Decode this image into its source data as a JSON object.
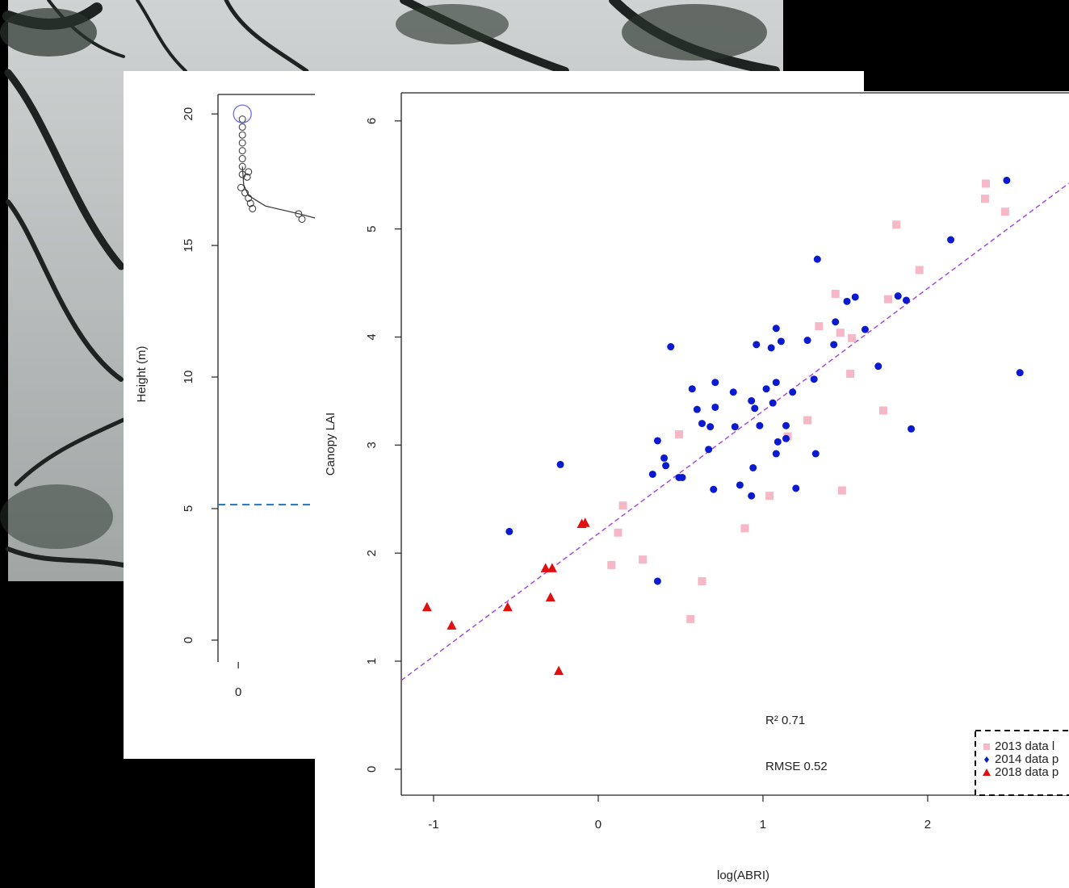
{
  "chart_data": [
    {
      "type": "scatter",
      "y_label": "Height (m)",
      "xlim": [
        -0.3,
        9
      ],
      "ylim": [
        -0.83,
        20.74
      ],
      "xticks": [
        0
      ],
      "yticks": [
        0,
        5,
        10,
        15,
        20
      ],
      "series": [
        {
          "color": "#333333",
          "x": [
            0.06,
            0.06,
            0.06,
            0.06,
            0.06,
            0.06,
            0.06,
            0.06,
            0.15,
            0.13,
            0.04,
            0.1,
            0.15,
            0.18,
            0.21,
            0.89,
            0.94
          ],
          "values": [
            19.8,
            19.5,
            19.2,
            18.9,
            18.6,
            18.3,
            18.0,
            17.7,
            17.8,
            17.6,
            17.2,
            17.0,
            16.8,
            16.6,
            16.4,
            16.2,
            16.0
          ]
        }
      ],
      "curve": {
        "color": "#333333",
        "x": [
          0.06,
          0.08,
          0.15,
          0.4,
          0.9,
          1.2
        ],
        "values": [
          18.0,
          17.3,
          16.9,
          16.5,
          16.2,
          16.0
        ]
      },
      "highlight": {
        "color": "#6f6fe6",
        "x": 0.06,
        "value": 20
      },
      "hline": {
        "color": "#1f77c4",
        "value": 5.15
      }
    },
    {
      "type": "scatter",
      "x_label": "log(ABRI)",
      "y_label": "Canopy LAI",
      "xlim": [
        -1.196,
        2.858
      ],
      "ylim": [
        -0.24,
        6.26
      ],
      "xticks": [
        -1,
        0,
        1,
        2
      ],
      "yticks": [
        0,
        1,
        2,
        3,
        4,
        5,
        6
      ],
      "legend": "bottom-right",
      "annotations": [
        "R² 0.71",
        "RMSE 0.52"
      ],
      "fit": {
        "color": "#a040e0",
        "slope": 1.135,
        "intercept": 2.18
      },
      "series": [
        {
          "name": "2013 data l",
          "color": "#f6b7c6",
          "marker": "square",
          "x": [
            2.353,
            2.348,
            2.47,
            1.81,
            1.95,
            1.44,
            1.76,
            1.34,
            1.47,
            1.54,
            1.53,
            1.73,
            1.27,
            1.15,
            0.49,
            0.15,
            0.12,
            0.08,
            0.27,
            0.63,
            0.89,
            1.04,
            1.48,
            0.56
          ],
          "values": [
            5.42,
            5.28,
            5.16,
            5.04,
            4.62,
            4.4,
            4.35,
            4.1,
            4.04,
            3.99,
            3.66,
            3.32,
            3.23,
            3.08,
            3.1,
            2.44,
            2.19,
            1.89,
            1.94,
            1.74,
            2.23,
            2.53,
            2.58,
            1.39
          ]
        },
        {
          "name": "2014 data p",
          "color": "#0a1ad0",
          "marker": "circle",
          "x": [
            2.48,
            2.14,
            1.33,
            1.56,
            1.51,
            1.82,
            1.87,
            1.62,
            1.44,
            1.43,
            1.08,
            0.96,
            0.44,
            1.27,
            1.11,
            1.05,
            1.7,
            2.56,
            0.82,
            0.71,
            0.57,
            1.02,
            1.08,
            1.31,
            1.18,
            1.06,
            0.93,
            0.95,
            0.6,
            0.71,
            1.14,
            0.98,
            0.83,
            0.63,
            0.68,
            1.09,
            1.14,
            0.36,
            0.67,
            1.9,
            -0.23,
            0.33,
            0.41,
            0.4,
            0.51,
            0.49,
            1.08,
            1.32,
            0.86,
            0.93,
            0.7,
            1.2,
            -0.54,
            0.36,
            0.94
          ],
          "values": [
            5.45,
            4.9,
            4.72,
            4.37,
            4.33,
            4.38,
            4.34,
            4.07,
            4.14,
            3.93,
            4.08,
            3.93,
            3.91,
            3.97,
            3.96,
            3.9,
            3.73,
            3.67,
            3.49,
            3.58,
            3.52,
            3.52,
            3.58,
            3.61,
            3.49,
            3.39,
            3.41,
            3.34,
            3.33,
            3.35,
            3.18,
            3.18,
            3.17,
            3.2,
            3.17,
            3.03,
            3.06,
            3.04,
            2.96,
            3.15,
            2.82,
            2.73,
            2.81,
            2.88,
            2.7,
            2.7,
            2.92,
            2.92,
            2.63,
            2.53,
            2.59,
            2.6,
            2.2,
            1.74,
            2.79
          ]
        },
        {
          "name": "2018 data p",
          "color": "#e01010",
          "marker": "triangle",
          "x": [
            -1.04,
            -0.89,
            -0.55,
            -0.32,
            -0.28,
            -0.29,
            -0.24,
            -0.1,
            -0.08
          ],
          "values": [
            1.5,
            1.33,
            1.5,
            1.86,
            1.86,
            1.59,
            0.91,
            2.27,
            2.28
          ]
        }
      ]
    }
  ]
}
